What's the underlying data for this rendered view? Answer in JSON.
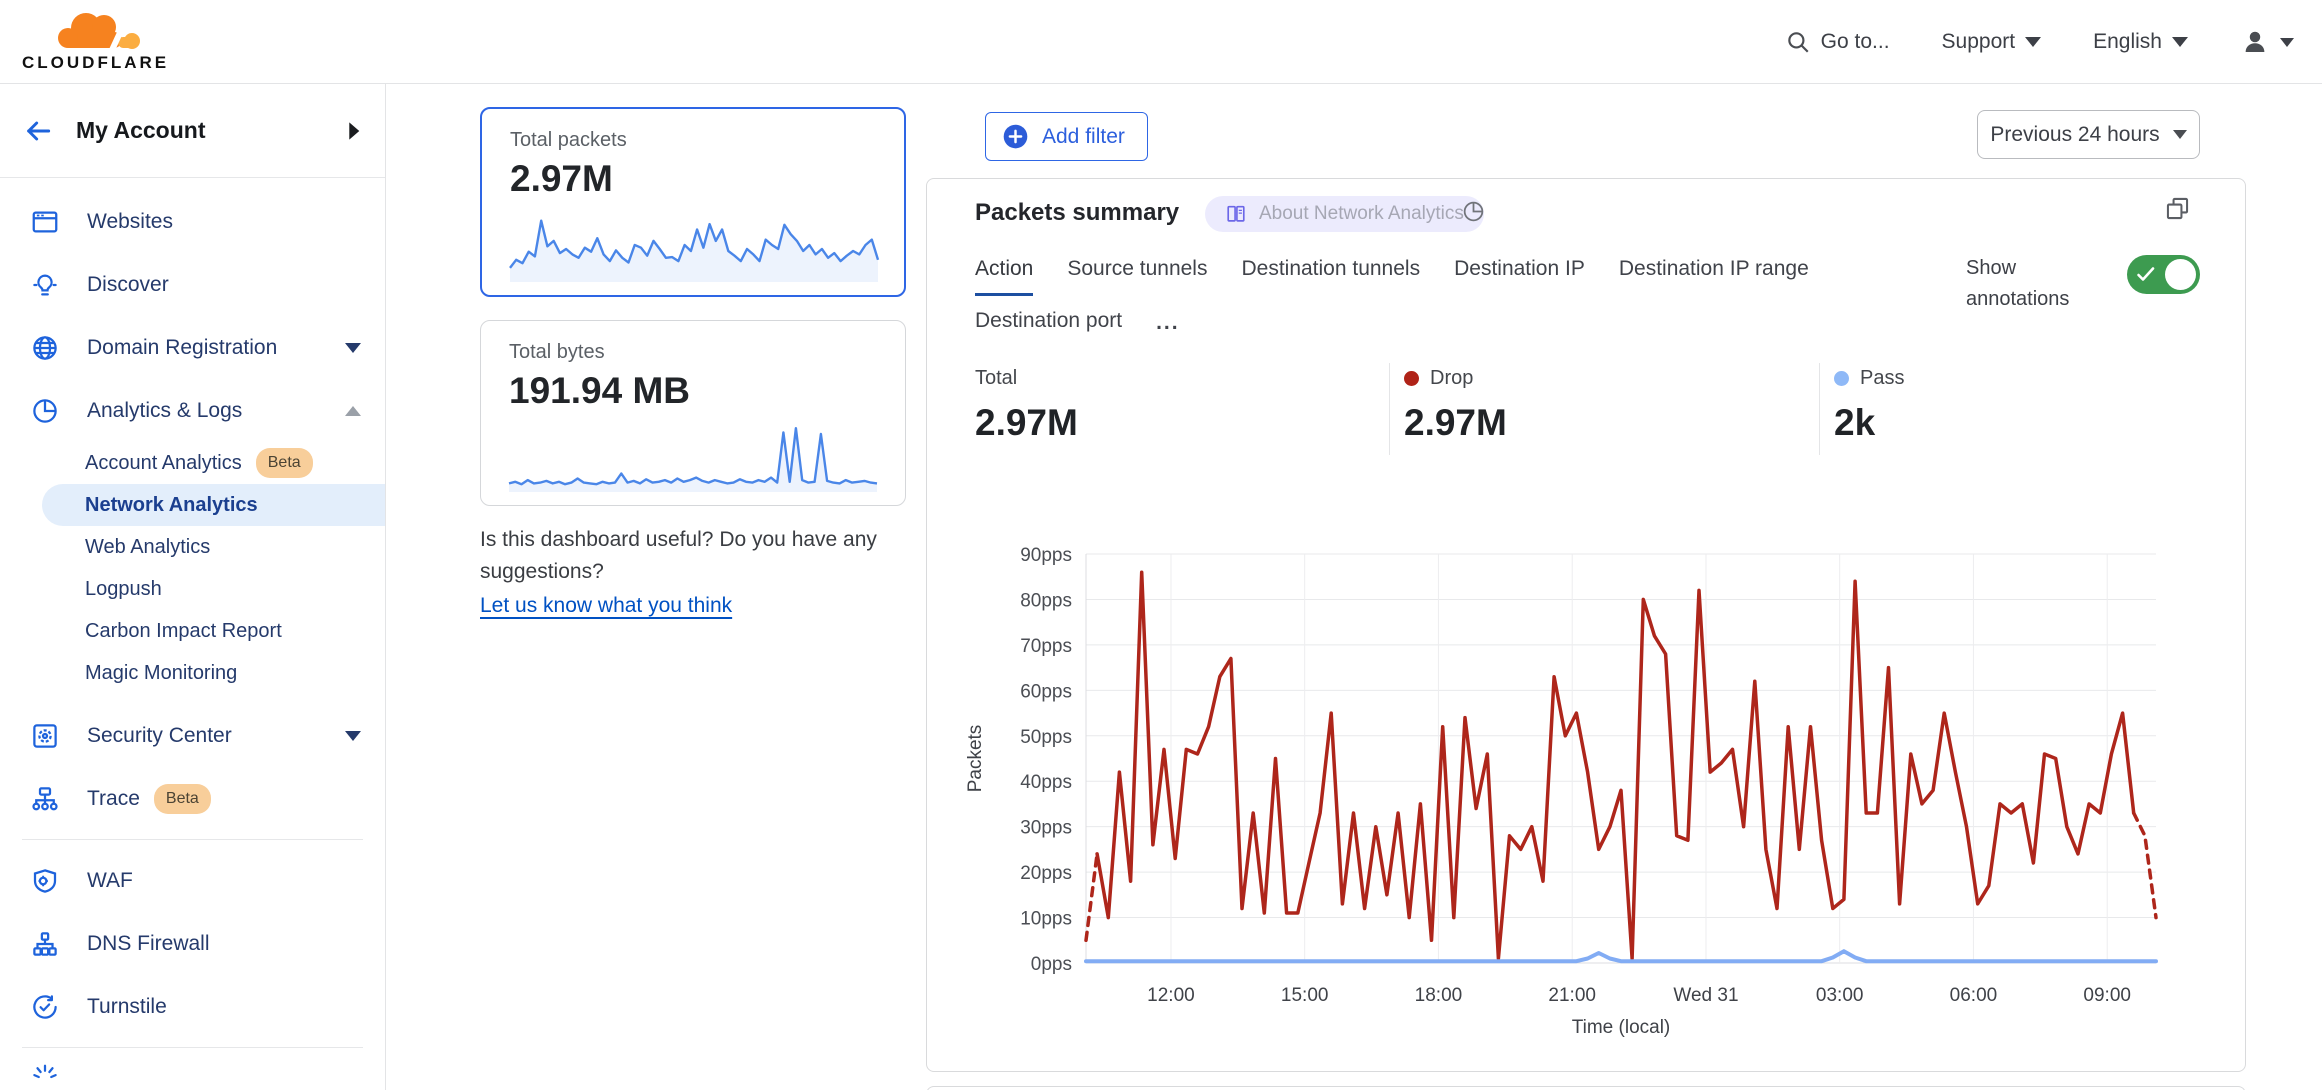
{
  "header": {
    "logo_text": "CLOUDFLARE",
    "goto": "Go to...",
    "support": "Support",
    "language": "English"
  },
  "sidebar": {
    "account": "My Account",
    "items": {
      "websites": "Websites",
      "discover": "Discover",
      "domain_registration": "Domain Registration",
      "analytics_logs": "Analytics & Logs",
      "security_center": "Security Center",
      "trace": "Trace",
      "waf": "WAF",
      "dns_firewall": "DNS Firewall",
      "turnstile": "Turnstile"
    },
    "analytics_children": [
      "Account Analytics",
      "Network Analytics",
      "Web Analytics",
      "Logpush",
      "Carbon Impact Report",
      "Magic Monitoring"
    ],
    "beta_badge": "Beta",
    "active_item": "Network Analytics"
  },
  "overview": {
    "packets_label": "Total packets",
    "packets_value": "2.97M",
    "bytes_label": "Total bytes",
    "bytes_value": "191.94 MB"
  },
  "feedback": {
    "question": "Is this dashboard useful? Do you have any suggestions?",
    "link": "Let us know what you think"
  },
  "toolbar": {
    "add_filter": "Add filter",
    "time_range": "Previous 24 hours"
  },
  "panel": {
    "title": "Packets summary",
    "about_badge": "About Network Analytics",
    "tabs": [
      "Action",
      "Source tunnels",
      "Destination tunnels",
      "Destination IP",
      "Destination IP range",
      "Destination port"
    ],
    "more": "...",
    "active_tab": "Action",
    "annotations_label": "Show annotations",
    "annotations_enabled": true,
    "stats": [
      {
        "label": "Total",
        "value": "2.97M"
      },
      {
        "label": "Drop",
        "value": "2.97M",
        "color": "#AE261B"
      },
      {
        "label": "Pass",
        "value": "2k",
        "color": "#8FB9F7"
      }
    ]
  },
  "colors": {
    "accent_blue": "#2E66E5",
    "link_blue": "#0051C3",
    "icon_blue": "#1E63DC",
    "sidebar_text": "#253A6B",
    "active_item_bg": "#E3EEFB",
    "beta_bg": "#F8CE9A",
    "toggle_green": "#3D9B50",
    "drop_red": "#AE261B",
    "pass_blue": "#82ACF4",
    "spark_blue": "#4A86E8",
    "badge_bg": "#ECEBFD",
    "logo_orange": "#F6821F",
    "logo_orange_light": "#FBAD41"
  },
  "icons": [
    "search-icon",
    "caret-down-icon",
    "user-icon",
    "back-arrow-icon",
    "chevron-right-icon",
    "browser-window-icon",
    "lightbulb-icon",
    "globe-icon",
    "pie-chart-icon",
    "safe-icon",
    "trace-icon",
    "shield-gear-icon",
    "hierarchy-icon",
    "refresh-check-icon",
    "burst-icon",
    "plus-circle-icon",
    "book-icon",
    "expand-icon",
    "check-icon"
  ],
  "chart_data": [
    {
      "id": "packets-summary",
      "type": "line",
      "title": "Packets summary",
      "ylabel": "Packets",
      "xlabel": "Time (local)",
      "ylim": [
        0,
        90
      ],
      "ytick_step": 10,
      "ytick_suffix": "pps",
      "grid": true,
      "legend_position": "stats-row-above",
      "xticks": [
        {
          "label": "12:00",
          "pos": 0.0794
        },
        {
          "label": "15:00",
          "pos": 0.2044
        },
        {
          "label": "18:00",
          "pos": 0.3294
        },
        {
          "label": "21:00",
          "pos": 0.4544
        },
        {
          "label": "Wed 31",
          "pos": 0.5794
        },
        {
          "label": "03:00",
          "pos": 0.7044
        },
        {
          "label": "06:00",
          "pos": 0.8294
        },
        {
          "label": "09:00",
          "pos": 0.9544
        }
      ],
      "series": [
        {
          "name": "Drop",
          "color": "#AE261B",
          "width": 3.5,
          "head_dash": 2,
          "tail_dash": 3,
          "values": [
            5,
            24,
            10,
            42,
            18,
            86,
            26,
            47,
            23,
            47,
            46,
            52,
            63,
            67,
            12,
            33,
            11,
            45,
            11,
            11,
            22,
            33,
            55,
            13,
            33,
            12,
            30,
            15,
            33,
            10,
            35,
            5,
            52,
            10,
            54,
            34,
            46,
            1,
            28,
            25,
            30,
            18,
            63,
            50,
            55,
            42,
            25,
            30,
            38,
            1,
            80,
            72,
            68,
            28,
            27,
            82,
            42,
            44,
            47,
            30,
            62,
            25,
            12,
            52,
            25,
            52,
            27,
            12,
            14,
            84,
            33,
            33,
            65,
            13,
            46,
            35,
            38,
            55,
            42,
            30,
            13,
            17,
            35,
            33,
            35,
            22,
            46,
            45,
            30,
            24,
            35,
            33,
            46,
            55,
            33,
            28,
            10
          ]
        },
        {
          "name": "Pass",
          "color": "#82ACF4",
          "width": 4,
          "values": [
            0.4,
            0.4,
            0.4,
            0.4,
            0.4,
            0.4,
            0.4,
            0.4,
            0.4,
            0.4,
            0.4,
            0.4,
            0.4,
            0.4,
            0.4,
            0.4,
            0.4,
            0.4,
            0.4,
            0.4,
            0.4,
            0.4,
            0.4,
            0.4,
            0.4,
            0.4,
            0.4,
            0.4,
            0.4,
            0.4,
            0.4,
            0.4,
            0.4,
            0.4,
            0.4,
            0.4,
            0.4,
            0.4,
            0.4,
            0.4,
            0.4,
            0.4,
            0.4,
            0.4,
            0.4,
            1.0,
            2.2,
            1.0,
            0.4,
            0.4,
            0.4,
            0.4,
            0.4,
            0.4,
            0.4,
            0.4,
            0.4,
            0.4,
            0.4,
            0.4,
            0.4,
            0.4,
            0.4,
            0.4,
            0.4,
            0.4,
            0.4,
            1.2,
            2.6,
            1.2,
            0.4,
            0.4,
            0.4,
            0.4,
            0.4,
            0.4,
            0.4,
            0.4,
            0.4,
            0.4,
            0.4,
            0.4,
            0.4,
            0.4,
            0.4,
            0.4,
            0.4,
            0.4,
            0.4,
            0.4,
            0.4,
            0.4,
            0.4,
            0.4,
            0.4,
            0.4,
            0.4
          ]
        }
      ]
    },
    {
      "id": "total-packets-sparkline",
      "type": "area",
      "color": "#4A86E8",
      "fill": "rgba(74,134,232,0.10)",
      "ymax": 95,
      "values": [
        18,
        30,
        25,
        42,
        35,
        88,
        50,
        58,
        40,
        46,
        38,
        33,
        48,
        42,
        62,
        38,
        28,
        44,
        33,
        26,
        52,
        48,
        36,
        58,
        46,
        33,
        34,
        28,
        52,
        43,
        75,
        48,
        83,
        58,
        75,
        43,
        36,
        28,
        46,
        38,
        28,
        60,
        52,
        46,
        82,
        68,
        58,
        43,
        52,
        38,
        46,
        33,
        40,
        28,
        36,
        43,
        38,
        52,
        60,
        30
      ]
    },
    {
      "id": "total-bytes-sparkline",
      "type": "area",
      "color": "#4A86E8",
      "fill": "rgba(74,134,232,0.10)",
      "ymax": 85,
      "values": [
        8,
        10,
        7,
        12,
        8,
        9,
        11,
        8,
        10,
        7,
        9,
        14,
        9,
        8,
        7,
        10,
        8,
        9,
        20,
        9,
        11,
        8,
        13,
        9,
        10,
        12,
        9,
        14,
        10,
        12,
        15,
        11,
        9,
        12,
        10,
        8,
        9,
        13,
        10,
        9,
        12,
        10,
        15,
        9,
        70,
        10,
        75,
        12,
        9,
        10,
        68,
        11,
        9,
        8,
        12,
        9,
        10,
        11,
        9,
        8
      ]
    }
  ]
}
